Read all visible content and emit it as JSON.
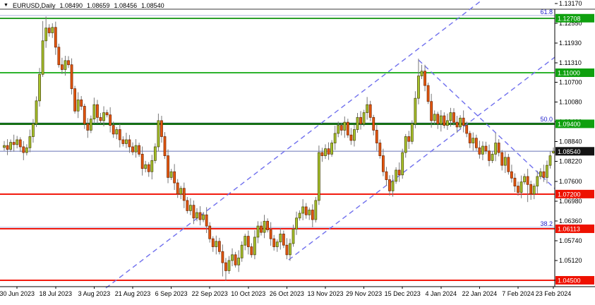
{
  "window": {
    "symbol": "EURUSD,Daily",
    "ohlc": {
      "open": "1.08490",
      "high": "1.08659",
      "low": "1.08456",
      "close": "1.08540"
    }
  },
  "chart_data": {
    "type": "candlestick",
    "title": "EURUSD,Daily",
    "symbol": "EURUSD",
    "timeframe": "Daily",
    "ylim": [
      1.043,
      1.13278
    ],
    "y_ticks": [
      1.1317,
      1.1255,
      1.1193,
      1.1131,
      1.107,
      1.1008,
      1.0946,
      1.0884,
      1.0822,
      1.076,
      1.0698,
      1.0636,
      1.0574,
      1.0512,
      1.045
    ],
    "x_labels": [
      {
        "text": "30 Jun 2023",
        "bar": 4
      },
      {
        "text": "18 Jul 2023",
        "bar": 16
      },
      {
        "text": "3 Aug 2023",
        "bar": 28
      },
      {
        "text": "21 Aug 2023",
        "bar": 40
      },
      {
        "text": "6 Sep 2023",
        "bar": 52
      },
      {
        "text": "22 Sep 2023",
        "bar": 64
      },
      {
        "text": "10 Oct 2023",
        "bar": 76
      },
      {
        "text": "26 Oct 2023",
        "bar": 88
      },
      {
        "text": "13 Nov 2023",
        "bar": 100
      },
      {
        "text": "29 Nov 2023",
        "bar": 112
      },
      {
        "text": "15 Dec 2023",
        "bar": 124
      },
      {
        "text": "4 Jan 2024",
        "bar": 136
      },
      {
        "text": "22 Jan 2024",
        "bar": 148
      },
      {
        "text": "7 Feb 2024",
        "bar": 160
      },
      {
        "text": "23 Feb 2024",
        "bar": 171
      }
    ],
    "price_lines": [
      {
        "price": 1.12708,
        "label": "1.12708",
        "color": "#2CA02C",
        "width": 2,
        "badge": "#0FA00F"
      },
      {
        "price": 1.11,
        "label": "1.11000",
        "color": "#2DB32D",
        "width": 2,
        "badge": "#0FA00F"
      },
      {
        "price": 1.094,
        "label": "1.09400",
        "color": "#156F15",
        "width": 3,
        "badge": "#0FA00F"
      },
      {
        "price": 1.072,
        "label": "1.07200",
        "color": "#F21B0F",
        "width": 2,
        "badge": "#EE1100"
      },
      {
        "price": 1.06113,
        "label": "1.06113",
        "color": "#F21B0F",
        "width": 2,
        "badge": "#EE1100"
      },
      {
        "price": 1.045,
        "label": "1.04500",
        "color": "#F21B0F",
        "width": 2,
        "badge": "#EE1100"
      }
    ],
    "fib_levels": [
      {
        "label": "61.8",
        "price": 1.1279
      },
      {
        "label": "50.0",
        "price": 1.0943
      },
      {
        "label": "38.2",
        "price": 1.06158
      }
    ],
    "current_price_line": {
      "price": 1.0854,
      "label": "1.08540",
      "color": "#9BA3CF",
      "badge": "#141414"
    },
    "trendlines": [
      {
        "x1": 150,
        "y1": 408,
        "x2": 683,
        "y2": 0,
        "dir": "ascending"
      },
      {
        "x1": 409,
        "y1": 368,
        "x2": 786,
        "y2": 81,
        "dir": "ascending"
      },
      {
        "x1": 593,
        "y1": 85,
        "x2": 786,
        "y2": 267,
        "dir": "descending"
      }
    ],
    "trendline_color": "#7070EE",
    "candles": {
      "first_open": 1.0866,
      "closes": [
        1.0872,
        1.086,
        1.0882,
        1.0875,
        1.089,
        1.0868,
        1.085,
        1.0865,
        1.09,
        1.094,
        1.1012,
        1.1095,
        1.12,
        1.124,
        1.1225,
        1.1242,
        1.118,
        1.1125,
        1.111,
        1.1138,
        1.1125,
        1.105,
        1.098,
        1.1015,
        1.0995,
        1.094,
        1.092,
        1.0955,
        1.1,
        1.096,
        1.095,
        1.0975,
        1.0968,
        1.0935,
        1.0908,
        1.0922,
        1.089,
        1.0878,
        1.089,
        1.0868,
        1.0852,
        1.0872,
        1.0845,
        1.08,
        1.0812,
        1.079,
        1.0825,
        1.0868,
        1.095,
        1.09,
        1.084,
        1.0772,
        1.079,
        1.0755,
        1.072,
        1.0738,
        1.07,
        1.0668,
        1.0685,
        1.0645,
        1.0662,
        1.064,
        1.0655,
        1.062,
        1.058,
        1.0555,
        1.0572,
        1.054,
        1.0505,
        1.048,
        1.0512,
        1.053,
        1.0498,
        1.052,
        1.056,
        1.0588,
        1.0555,
        1.053,
        1.0585,
        1.062,
        1.06,
        1.0635,
        1.0608,
        1.058,
        1.0555,
        1.057,
        1.0595,
        1.056,
        1.053,
        1.0565,
        1.061,
        1.0645,
        1.066,
        1.068,
        1.0655,
        1.067,
        1.064,
        1.07,
        1.085,
        1.084,
        1.0862,
        1.0845,
        1.088,
        1.091,
        1.0935,
        1.092,
        1.0945,
        1.0905,
        1.0888,
        1.0922,
        1.096,
        1.094,
        1.0975,
        1.1,
        1.096,
        1.092,
        1.088,
        1.084,
        1.079,
        1.0765,
        1.073,
        1.076,
        1.0795,
        1.078,
        1.085,
        1.09,
        1.0885,
        1.094,
        1.102,
        1.109,
        1.1105,
        1.106,
        1.101,
        1.095,
        1.097,
        1.094,
        1.0965,
        1.0935,
        1.095,
        1.0975,
        1.0945,
        1.093,
        1.0958,
        1.0935,
        1.091,
        1.088,
        1.0895,
        1.0865,
        1.0845,
        1.087,
        1.0855,
        1.0825,
        1.0845,
        1.088,
        1.085,
        1.081,
        1.0835,
        1.079,
        1.077,
        1.0745,
        1.0725,
        1.0758,
        1.0775,
        1.075,
        1.072,
        1.0745,
        1.0775,
        1.079,
        1.0772,
        1.081,
        1.084,
        1.0854
      ],
      "wick_up_pips": [
        14,
        20,
        9,
        24,
        12,
        8,
        18,
        11,
        22,
        15
      ],
      "wick_dn_pips": [
        10,
        18,
        8,
        22,
        12,
        16,
        24,
        9,
        14,
        19
      ],
      "overrides": {
        "12": {
          "h": 1.1262
        },
        "13": {
          "h": 1.1276
        },
        "15": {
          "h": 1.1255
        },
        "68": {
          "l": 1.0462
        },
        "69": {
          "l": 1.0448
        },
        "88": {
          "l": 1.0516
        },
        "120": {
          "l": 1.0715
        },
        "129": {
          "h": 1.1144
        },
        "130": {
          "h": 1.1125
        },
        "153": {
          "h": 1.0912
        },
        "163": {
          "l": 1.0695
        },
        "164": {
          "l": 1.0702
        },
        "171": {
          "o": 1.0849,
          "h": 1.08659,
          "l": 1.08456,
          "c": 1.0854
        }
      }
    },
    "style": {
      "bull_fill": "#A8C42A",
      "bull_border": "#555512",
      "bear_fill": "#E8570E",
      "bear_border": "#7A2C06",
      "wick": "#787878",
      "fib_label_color": "#2222CC",
      "axis_color": "#000000",
      "grid_top_line": "#3A3A3A"
    }
  }
}
